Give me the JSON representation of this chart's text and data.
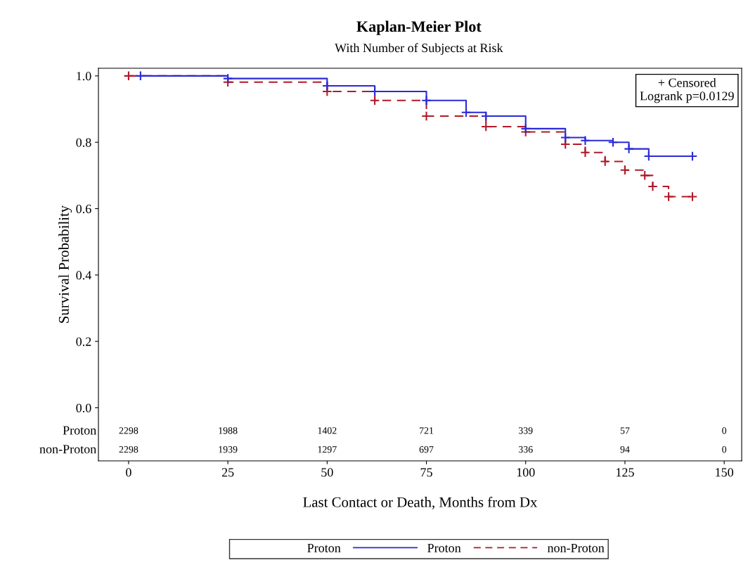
{
  "chart_data": {
    "type": "step",
    "title": "Kaplan-Meier Plot",
    "subtitle": "With Number of Subjects at Risk",
    "xlabel": "Last Contact or Death, Months from Dx",
    "ylabel": "Survival Probability",
    "legend_title": "Proton",
    "legend": "bottom",
    "grid": false,
    "marker": "cross",
    "xlim": [
      -7.6,
      154.4
    ],
    "xticks": [
      0,
      25,
      50,
      75,
      100,
      125,
      150
    ],
    "ylim": [
      -0.16,
      1.023
    ],
    "yticks": [
      {
        "value": 0,
        "label": "0.0"
      },
      {
        "value": 0.2,
        "label": "0.2"
      },
      {
        "value": 0.4,
        "label": "0.4"
      },
      {
        "value": 0.6,
        "label": "0.6"
      },
      {
        "value": 0.8,
        "label": "0.8"
      },
      {
        "value": 1,
        "label": "1.0"
      }
    ],
    "series": [
      {
        "name": "Proton",
        "color": "#2a2ad8",
        "line_style": "solid",
        "x": [
          3,
          25,
          50,
          62,
          75,
          85,
          90,
          100,
          110,
          115,
          122,
          126,
          131,
          142
        ],
        "values": [
          1.0,
          0.992,
          0.97,
          0.953,
          0.926,
          0.89,
          0.879,
          0.841,
          0.814,
          0.805,
          0.8,
          0.78,
          0.758,
          0.758
        ]
      },
      {
        "name": "non-Proton",
        "color": "#b01a2a",
        "line_style": "dashed",
        "x": [
          0,
          25,
          50,
          62,
          75,
          90,
          100,
          110,
          115,
          120,
          125,
          130,
          132,
          136,
          142
        ],
        "values": [
          1.0,
          0.981,
          0.953,
          0.926,
          0.879,
          0.847,
          0.831,
          0.794,
          0.769,
          0.742,
          0.716,
          0.7,
          0.667,
          0.636,
          0.636
        ]
      }
    ],
    "annotations": [
      "+ Censored",
      "Logrank p=0.0129",
      "Proton",
      "2298",
      "1988",
      "1402",
      "721",
      "339",
      "57",
      "0",
      "non-Proton",
      "2298",
      "1939",
      "1297",
      "697",
      "336",
      "94",
      "0"
    ]
  }
}
